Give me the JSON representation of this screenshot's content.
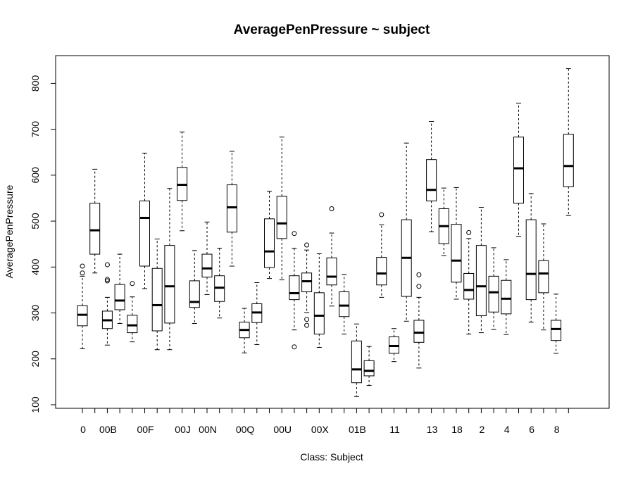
{
  "chart_data": {
    "type": "boxplot",
    "title": "AveragePenPressure ~ subject",
    "xlabel": "Class: Subject",
    "ylabel": "AveragePenPressure",
    "ylim": [
      100,
      850
    ],
    "yticks": [
      100,
      200,
      300,
      400,
      500,
      600,
      700,
      800
    ],
    "grid": false,
    "legend": "none",
    "box_color": "#000000",
    "categories": [
      {
        "label": "0",
        "stats": [
          222,
          272,
          296,
          316,
          380
        ],
        "outliers": [
          387,
          402
        ]
      },
      {
        "label": "",
        "stats": [
          387,
          428,
          480,
          539,
          613
        ],
        "outliers": []
      },
      {
        "label": "00B",
        "stats": [
          230,
          266,
          284,
          304,
          334
        ],
        "outliers": [
          370,
          373,
          405
        ]
      },
      {
        "label": "",
        "stats": [
          277,
          307,
          327,
          362,
          428
        ],
        "outliers": []
      },
      {
        "label": "",
        "stats": [
          237,
          257,
          273,
          295,
          335
        ],
        "outliers": [
          364
        ]
      },
      {
        "label": "00F",
        "stats": [
          353,
          402,
          507,
          544,
          648
        ],
        "outliers": []
      },
      {
        "label": "",
        "stats": [
          220,
          261,
          317,
          397,
          461
        ],
        "outliers": []
      },
      {
        "label": "",
        "stats": [
          220,
          278,
          358,
          447,
          571
        ],
        "outliers": []
      },
      {
        "label": "00J",
        "stats": [
          479,
          545,
          579,
          617,
          694
        ],
        "outliers": []
      },
      {
        "label": "",
        "stats": [
          277,
          312,
          324,
          370,
          436
        ],
        "outliers": []
      },
      {
        "label": "00N",
        "stats": [
          340,
          378,
          397,
          428,
          498
        ],
        "outliers": []
      },
      {
        "label": "",
        "stats": [
          289,
          325,
          355,
          381,
          441
        ],
        "outliers": []
      },
      {
        "label": "",
        "stats": [
          402,
          476,
          530,
          579,
          652
        ],
        "outliers": []
      },
      {
        "label": "00Q",
        "stats": [
          213,
          246,
          263,
          280,
          310
        ],
        "outliers": []
      },
      {
        "label": "",
        "stats": [
          231,
          279,
          301,
          320,
          366
        ],
        "outliers": []
      },
      {
        "label": "",
        "stats": [
          375,
          399,
          434,
          505,
          565
        ],
        "outliers": []
      },
      {
        "label": "00U",
        "stats": [
          372,
          462,
          495,
          554,
          683
        ],
        "outliers": []
      },
      {
        "label": "",
        "stats": [
          263,
          329,
          343,
          381,
          441
        ],
        "outliers": [
          226,
          473
        ]
      },
      {
        "label": "",
        "stats": [
          301,
          346,
          369,
          387,
          437
        ],
        "outliers": [
          273,
          286,
          448
        ]
      },
      {
        "label": "00X",
        "stats": [
          225,
          254,
          294,
          344,
          429
        ],
        "outliers": []
      },
      {
        "label": "",
        "stats": [
          315,
          361,
          379,
          420,
          474
        ],
        "outliers": [
          527
        ]
      },
      {
        "label": "",
        "stats": [
          254,
          292,
          316,
          346,
          384
        ],
        "outliers": []
      },
      {
        "label": "01B",
        "stats": [
          118,
          148,
          177,
          239,
          276
        ],
        "outliers": []
      },
      {
        "label": "",
        "stats": [
          142,
          163,
          174,
          196,
          227
        ],
        "outliers": []
      },
      {
        "label": "",
        "stats": [
          334,
          361,
          386,
          421,
          492
        ],
        "outliers": [
          514
        ]
      },
      {
        "label": "11",
        "stats": [
          194,
          212,
          228,
          248,
          266
        ],
        "outliers": []
      },
      {
        "label": "",
        "stats": [
          282,
          336,
          420,
          503,
          670
        ],
        "outliers": []
      },
      {
        "label": "",
        "stats": [
          180,
          236,
          257,
          284,
          334
        ],
        "outliers": [
          358,
          383
        ]
      },
      {
        "label": "13",
        "stats": [
          477,
          544,
          568,
          634,
          717
        ],
        "outliers": []
      },
      {
        "label": "",
        "stats": [
          425,
          451,
          489,
          527,
          572
        ],
        "outliers": []
      },
      {
        "label": "18",
        "stats": [
          330,
          367,
          414,
          493,
          573
        ],
        "outliers": []
      },
      {
        "label": "",
        "stats": [
          254,
          330,
          350,
          386,
          462
        ],
        "outliers": [
          475
        ]
      },
      {
        "label": "2",
        "stats": [
          257,
          294,
          358,
          447,
          530
        ],
        "outliers": []
      },
      {
        "label": "",
        "stats": [
          264,
          302,
          345,
          380,
          442
        ],
        "outliers": []
      },
      {
        "label": "4",
        "stats": [
          253,
          298,
          331,
          371,
          416
        ],
        "outliers": []
      },
      {
        "label": "",
        "stats": [
          467,
          539,
          615,
          683,
          757
        ],
        "outliers": []
      },
      {
        "label": "6",
        "stats": [
          280,
          329,
          385,
          503,
          560
        ],
        "outliers": []
      },
      {
        "label": "",
        "stats": [
          263,
          344,
          386,
          414,
          494
        ],
        "outliers": []
      },
      {
        "label": "8",
        "stats": [
          212,
          240,
          265,
          284,
          341
        ],
        "outliers": []
      },
      {
        "label": "",
        "stats": [
          512,
          575,
          620,
          689,
          832
        ],
        "outliers": []
      }
    ]
  }
}
